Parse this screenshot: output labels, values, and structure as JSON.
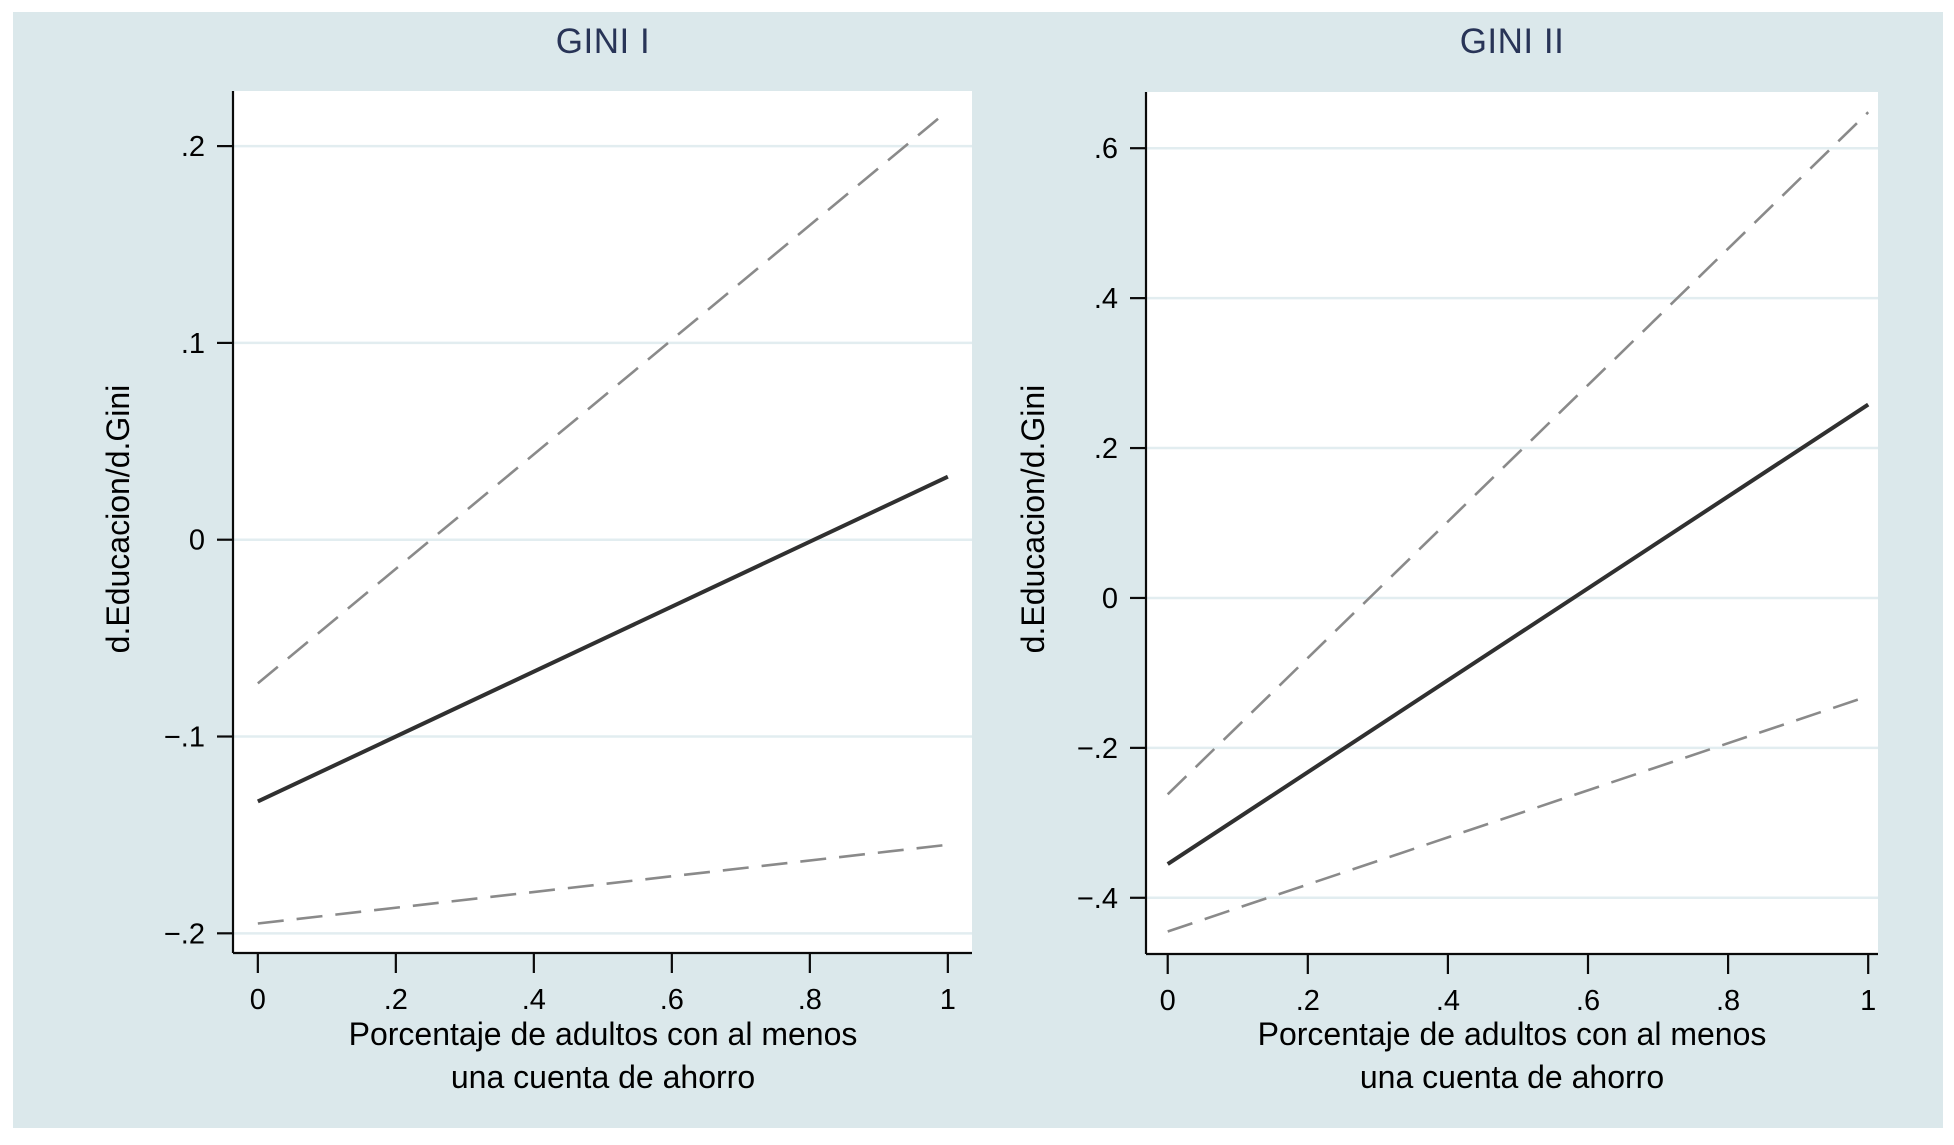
{
  "figure": {
    "canvas_color": "#dbe8eb",
    "plot_background": "#ffffff",
    "gridline_color": "#e2edf0",
    "axis_color": "#0a0a0a",
    "tick_label_color": "#000000",
    "title_color": "#283457",
    "solid_line_color": "#303030",
    "dashed_line_color": "#8a8a8a"
  },
  "xlabel_lines": [
    "Porcentaje de adultos con al menos",
    "una cuenta de ahorro"
  ],
  "chart_data": [
    {
      "type": "line",
      "title": "GINI I",
      "xlabel": "Porcentaje de adultos con al menos una cuenta de ahorro",
      "ylabel": "d.Educacion/d.Gini",
      "x": [
        0,
        1
      ],
      "series": [
        {
          "name": "point_estimate",
          "style": "solid",
          "values": [
            -0.133,
            0.032
          ]
        },
        {
          "name": "upper_ci",
          "style": "dashed",
          "values": [
            -0.073,
            0.218
          ]
        },
        {
          "name": "lower_ci",
          "style": "dashed",
          "values": [
            -0.195,
            -0.155
          ]
        }
      ],
      "xlim": [
        -0.036,
        1.035
      ],
      "ylim": [
        -0.21,
        0.228
      ],
      "xticks": {
        "values": [
          0,
          0.2,
          0.4,
          0.6,
          0.8,
          1
        ],
        "labels": [
          "0",
          ".2",
          ".4",
          ".6",
          ".8",
          "1"
        ]
      },
      "yticks": {
        "values": [
          0.2,
          0.1,
          0,
          -0.1,
          -0.2
        ],
        "labels": [
          ".2",
          ".1",
          "0",
          "−.1",
          "−.2"
        ]
      },
      "grid": "horizontal",
      "legend": "none"
    },
    {
      "type": "line",
      "title": "GINI II",
      "xlabel": "Porcentaje de adultos con al menos una cuenta de ahorro",
      "ylabel": "d.Educacion/d.Gini",
      "x": [
        0,
        1
      ],
      "series": [
        {
          "name": "point_estimate",
          "style": "solid",
          "values": [
            -0.355,
            0.258
          ]
        },
        {
          "name": "upper_ci",
          "style": "dashed",
          "values": [
            -0.262,
            0.648
          ]
        },
        {
          "name": "lower_ci",
          "style": "dashed",
          "values": [
            -0.445,
            -0.131
          ]
        }
      ],
      "xlim": [
        -0.031,
        1.014
      ],
      "ylim": [
        -0.475,
        0.675
      ],
      "xticks": {
        "values": [
          0,
          0.2,
          0.4,
          0.6,
          0.8,
          1
        ],
        "labels": [
          "0",
          ".2",
          ".4",
          ".6",
          ".8",
          "1"
        ]
      },
      "yticks": {
        "values": [
          0.6,
          0.4,
          0.2,
          0,
          -0.2,
          -0.4
        ],
        "labels": [
          ".6",
          ".4",
          ".2",
          "0",
          "−.2",
          "−.4"
        ]
      },
      "grid": "horizontal",
      "legend": "none"
    }
  ]
}
